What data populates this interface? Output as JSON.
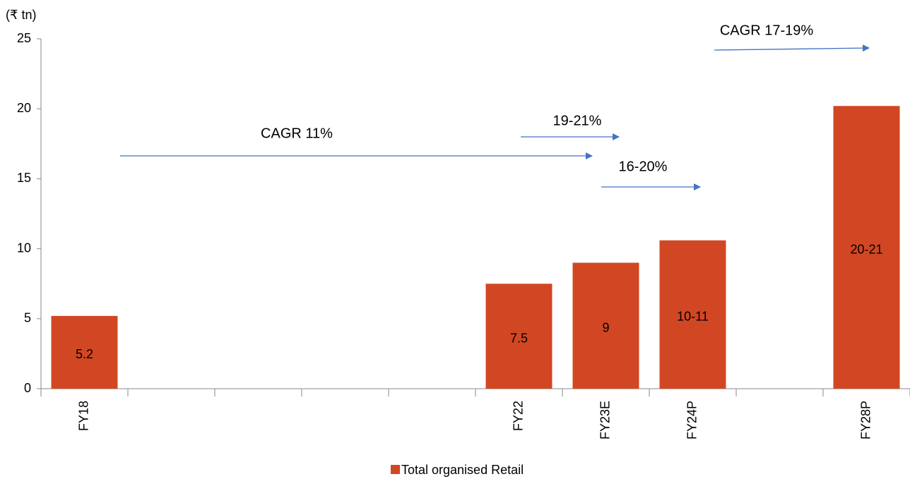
{
  "chart_data": {
    "type": "bar",
    "y_axis_label": "(₹ tn)",
    "categories": [
      "FY18",
      null,
      null,
      null,
      null,
      "FY22",
      "FY23E",
      "FY24P",
      null,
      "FY28P"
    ],
    "series": [
      {
        "name": "Total organised Retail",
        "color": "#d24723",
        "values": [
          5.2,
          null,
          null,
          null,
          null,
          7.5,
          9,
          10.6,
          null,
          20.2
        ],
        "value_labels": [
          "5.2",
          null,
          null,
          null,
          null,
          "7.5",
          "9",
          "10-11",
          null,
          "20-21"
        ]
      }
    ],
    "annotations": [
      "CAGR 11%",
      "19-21%",
      "16-20%",
      "CAGR 17-19%"
    ],
    "ylim": [
      0,
      25
    ],
    "yticks": [
      0,
      5,
      10,
      15,
      20,
      25
    ],
    "grid": false,
    "legend": "bottom"
  }
}
